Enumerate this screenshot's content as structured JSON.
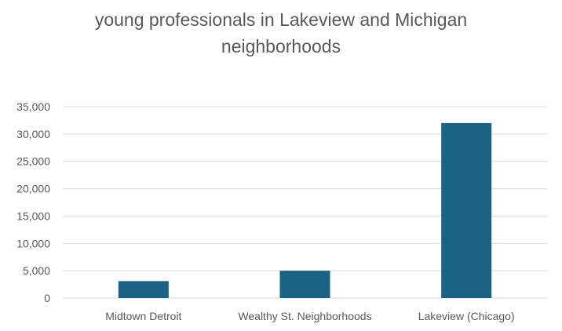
{
  "chart_data": {
    "type": "bar",
    "title_lines": [
      "young professionals in Lakeview and Michigan",
      "neighborhoods"
    ],
    "categories": [
      "Midtown Detroit",
      "Wealthy St. Neighborhoods",
      "Lakeview (Chicago)"
    ],
    "values": [
      3100,
      5000,
      32000
    ],
    "ylim": [
      0,
      35000
    ],
    "yticks": [
      "0",
      "5,000",
      "10,000",
      "15,000",
      "20,000",
      "25,000",
      "30,000",
      "35,000"
    ],
    "ytick_values": [
      0,
      5000,
      10000,
      15000,
      20000,
      25000,
      30000,
      35000
    ],
    "bar_color": "#1a6384",
    "grid": true,
    "legend": "none"
  }
}
